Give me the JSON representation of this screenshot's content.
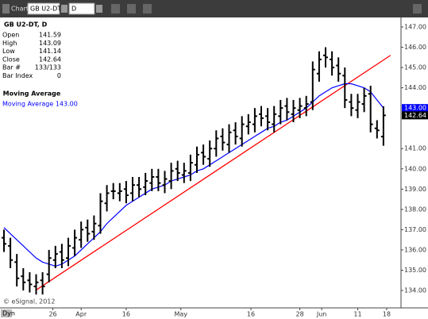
{
  "toolbar": {
    "title": "Chart",
    "symbol": "GB U2-DT",
    "interval": "D"
  },
  "info_panel": {
    "heading": "GB U2-DT, D",
    "rows": [
      {
        "label": "Open",
        "value": "141.59"
      },
      {
        "label": "High",
        "value": "143.09"
      },
      {
        "label": "Low",
        "value": "141.14"
      },
      {
        "label": "Close",
        "value": "142.64"
      },
      {
        "label": "Bar #",
        "value": "133/133"
      },
      {
        "label": "Bar Index",
        "value": "0"
      }
    ],
    "study": "Moving Average",
    "study_value": "Moving Average 143.00"
  },
  "copyright": "© eSignal, 2012",
  "dyn_label": "Dyn",
  "chart_data": {
    "type": "ohlc",
    "xlim": [
      -0.617,
      61.73
    ],
    "ylim": [
      133.14,
      147.47
    ],
    "yticks": [
      {
        "value": 134,
        "label": "134.00"
      },
      {
        "value": 135,
        "label": "135.00"
      },
      {
        "value": 136,
        "label": "136.00"
      },
      {
        "value": 137,
        "label": "137.00"
      },
      {
        "value": 138,
        "label": "138.00"
      },
      {
        "value": 139,
        "label": "139.00"
      },
      {
        "value": 140,
        "label": "140.00"
      },
      {
        "value": 141,
        "label": "141.00"
      },
      {
        "value": 144,
        "label": "144.00"
      },
      {
        "value": 145,
        "label": "145.00"
      },
      {
        "value": 146,
        "label": "146.00"
      },
      {
        "value": 147,
        "label": "147.00"
      }
    ],
    "xticks": [
      {
        "value": 7.6,
        "label": "26"
      },
      {
        "value": 12,
        "label": "Apr"
      },
      {
        "value": 19,
        "label": "16"
      },
      {
        "value": 27.5,
        "label": "May"
      },
      {
        "value": 38.4,
        "label": "16"
      },
      {
        "value": 46,
        "label": "28"
      },
      {
        "value": 49.4,
        "label": "Jun"
      },
      {
        "value": 55,
        "label": "11"
      },
      {
        "value": 59.5,
        "label": "18"
      }
    ],
    "bar_color": "#000000",
    "open": [
      136.6,
      136.2,
      135.4,
      134.7,
      134.5,
      134.2,
      134.5,
      134.8,
      135.5,
      135.9,
      135.6,
      136.1,
      136.5,
      137.1,
      136.9,
      137.2,
      138.3,
      138.9,
      138.8,
      139.0,
      138.8,
      139.2,
      139.1,
      139.3,
      139.6,
      139.2,
      139.4,
      140.0,
      139.7,
      139.8,
      140.2,
      140.8,
      140.5,
      141.0,
      141.6,
      141.2,
      141.9,
      141.5,
      142.1,
      142.2,
      142.7,
      142.6,
      142.2,
      142.6,
      143.1,
      142.7,
      142.9,
      143.0,
      143.3,
      144.7,
      145.6,
      145.4,
      145.1,
      144.6,
      143.3,
      142.9,
      143.2,
      143.7,
      142.0,
      141.59
    ],
    "high": [
      137.0,
      136.6,
      135.8,
      135.1,
      134.9,
      134.8,
      134.9,
      136.0,
      136.2,
      136.3,
      136.6,
      137.0,
      137.4,
      137.5,
      137.7,
      138.8,
      139.2,
      139.3,
      139.3,
      139.4,
      139.6,
      139.6,
      139.8,
      140.0,
      140.0,
      139.9,
      140.3,
      140.4,
      140.3,
      140.7,
      141.1,
      141.2,
      141.4,
      141.9,
      142.0,
      142.2,
      142.3,
      142.6,
      142.7,
      143.0,
      143.1,
      143.0,
      143.1,
      143.4,
      143.5,
      143.4,
      143.5,
      143.6,
      145.3,
      145.8,
      146.0,
      145.8,
      145.5,
      145.0,
      143.7,
      143.7,
      144.0,
      144.1,
      142.4,
      143.09
    ],
    "low": [
      135.9,
      135.1,
      134.2,
      134.0,
      133.9,
      133.8,
      133.8,
      134.4,
      135.1,
      135.1,
      135.2,
      135.7,
      136.1,
      136.4,
      136.5,
      136.8,
      137.9,
      138.5,
      138.4,
      138.3,
      138.4,
      138.6,
      138.7,
      138.9,
      138.9,
      138.8,
      139.0,
      139.4,
      139.3,
      139.4,
      139.8,
      140.2,
      140.1,
      140.6,
      140.9,
      140.8,
      141.2,
      141.1,
      141.7,
      141.8,
      142.1,
      141.9,
      141.8,
      142.2,
      142.4,
      142.3,
      142.5,
      142.6,
      142.9,
      144.3,
      145.0,
      144.6,
      144.3,
      143.0,
      142.6,
      142.5,
      142.8,
      141.8,
      141.5,
      141.14
    ],
    "close": [
      136.3,
      135.5,
      134.6,
      134.4,
      134.3,
      134.4,
      134.2,
      135.6,
      135.8,
      135.5,
      136.2,
      136.6,
      137.0,
      136.8,
      137.3,
      138.4,
      138.8,
      138.9,
      138.9,
      138.7,
      139.2,
      139.0,
      139.4,
      139.6,
      139.3,
      139.5,
      139.9,
      139.8,
      139.9,
      140.3,
      140.7,
      140.6,
      141.0,
      141.5,
      141.3,
      141.8,
      141.6,
      142.2,
      142.3,
      142.6,
      142.5,
      142.3,
      142.7,
      143.0,
      142.8,
      143.0,
      143.1,
      143.2,
      144.9,
      145.4,
      145.5,
      145.0,
      144.7,
      143.4,
      143.0,
      143.3,
      143.6,
      142.2,
      141.9,
      142.64
    ],
    "moving_average": {
      "color": "#0000ff",
      "values": [
        137.1,
        136.8,
        136.5,
        136.2,
        135.9,
        135.6,
        135.4,
        135.3,
        135.2,
        135.3,
        135.5,
        135.7,
        136.0,
        136.3,
        136.6,
        136.9,
        137.3,
        137.6,
        137.9,
        138.2,
        138.4,
        138.6,
        138.8,
        139.0,
        139.1,
        139.2,
        139.4,
        139.5,
        139.6,
        139.7,
        139.9,
        140.0,
        140.2,
        140.4,
        140.6,
        140.8,
        141.0,
        141.2,
        141.4,
        141.6,
        141.8,
        142.0,
        142.1,
        142.3,
        142.4,
        142.6,
        142.8,
        143.0,
        143.3,
        143.6,
        143.8,
        144.0,
        144.1,
        144.2,
        144.2,
        144.1,
        144.0,
        143.8,
        143.4,
        143.0
      ]
    },
    "trendline": {
      "color": "#ff0000",
      "x": [
        4.9,
        60.1
      ],
      "values": [
        134.0,
        145.6
      ]
    },
    "last_labels": [
      {
        "value": 143.0,
        "label": "143.00",
        "color": "#0000ff"
      },
      {
        "value": 142.64,
        "label": "142.64",
        "color": "#000000"
      }
    ]
  }
}
